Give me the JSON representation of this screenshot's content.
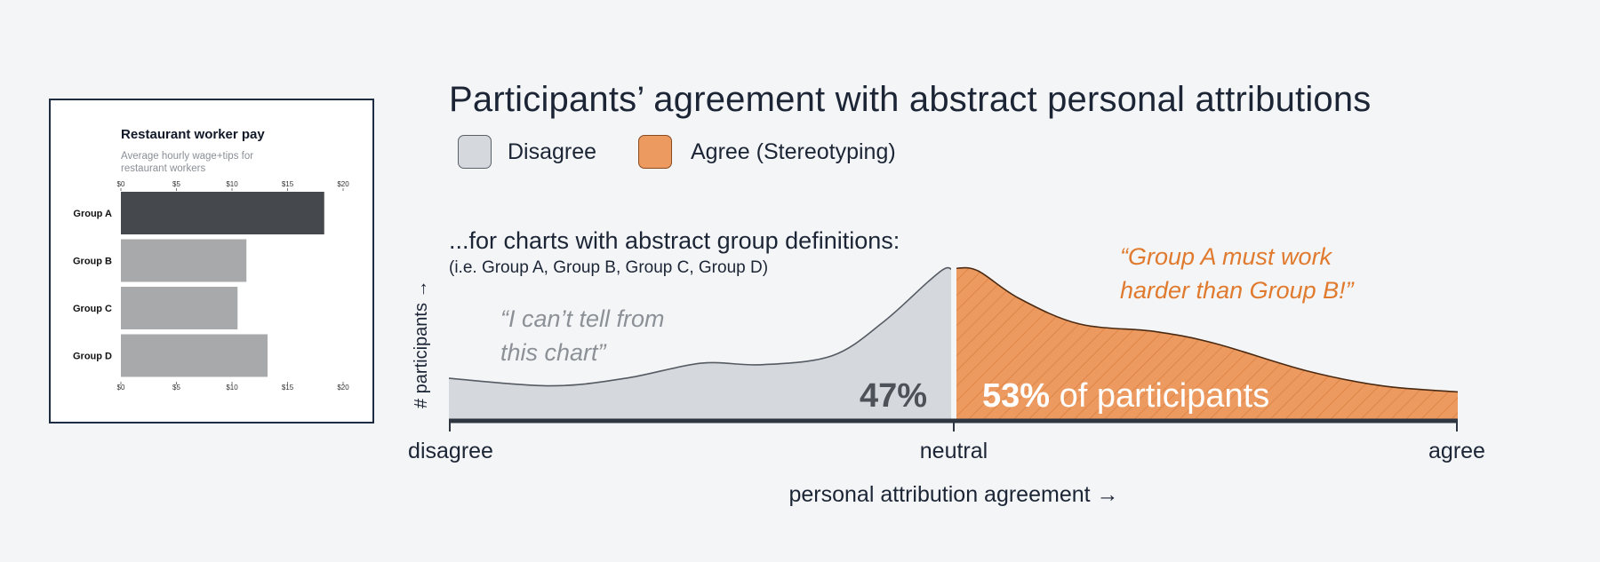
{
  "title": "Participants’ agreement with abstract personal attributions",
  "legend": [
    {
      "label": "Disagree",
      "color": "#d5d8dc"
    },
    {
      "label": "Agree (Stereotyping)",
      "color": "#ec9a60"
    }
  ],
  "subtitle": "...for charts with abstract group definitions:",
  "subtitle_note": "(i.e. Group A, Group B, Group C, Group D)",
  "quote_disagree": [
    "“I can’t tell from",
    "this chart”"
  ],
  "quote_agree": [
    "“Group A must work",
    "harder than Group B!”"
  ],
  "ylabel": "# participants →",
  "xlabel": "personal attribution agreement →",
  "colors": {
    "disagree_fill": "#d5d8dc",
    "agree_fill": "#ec9a60",
    "agree_text": "#e07a2e",
    "hatch": "#d97c3c",
    "axis": "#2e3642",
    "title": "#1c2535",
    "muted_text": "#8c9197"
  },
  "chart_data": [
    {
      "type": "area",
      "title": "Participants’ agreement with abstract personal attributions",
      "xlabel": "personal attribution agreement →",
      "ylabel": "# participants →",
      "x_tick_labels": [
        "disagree",
        "neutral",
        "agree"
      ],
      "xlim": [
        -1,
        1
      ],
      "ylim": [
        0,
        1
      ],
      "density": [
        {
          "x": -1.0,
          "y": 0.27
        },
        {
          "x": -0.8,
          "y": 0.22
        },
        {
          "x": -0.65,
          "y": 0.27
        },
        {
          "x": -0.5,
          "y": 0.37
        },
        {
          "x": -0.38,
          "y": 0.36
        },
        {
          "x": -0.24,
          "y": 0.42
        },
        {
          "x": -0.14,
          "y": 0.64
        },
        {
          "x": -0.05,
          "y": 0.91
        },
        {
          "x": -0.015,
          "y": 1.0
        },
        {
          "x": 0.0,
          "y": 0.98
        },
        {
          "x": 0.01,
          "y": 1.0
        },
        {
          "x": 0.05,
          "y": 0.98
        },
        {
          "x": 0.13,
          "y": 0.8
        },
        {
          "x": 0.25,
          "y": 0.63
        },
        {
          "x": 0.4,
          "y": 0.58
        },
        {
          "x": 0.52,
          "y": 0.5
        },
        {
          "x": 0.7,
          "y": 0.32
        },
        {
          "x": 0.85,
          "y": 0.22
        },
        {
          "x": 1.0,
          "y": 0.18
        }
      ],
      "series": [
        {
          "name": "Disagree",
          "share_percent": 47
        },
        {
          "name": "Agree (Stereotyping)",
          "share_percent": 53
        }
      ],
      "annotations": {
        "disagree_pct": "47%",
        "agree_pct": "53%",
        "agree_suffix": " of participants"
      }
    },
    {
      "type": "bar",
      "title": "Restaurant worker pay",
      "subtitle": [
        "Average hourly wage+tips for",
        "restaurant workers"
      ],
      "categories": [
        "Group A",
        "Group B",
        "Group C",
        "Group D"
      ],
      "values": [
        18.3,
        11.3,
        10.5,
        13.2
      ],
      "tick_labels": [
        "$0",
        "$5",
        "$10",
        "$15",
        "$20"
      ],
      "xlim": [
        0,
        20
      ],
      "bar_colors": [
        "#45484c",
        "#a8a9ab",
        "#a8a9ab",
        "#a8a9ab"
      ]
    }
  ]
}
